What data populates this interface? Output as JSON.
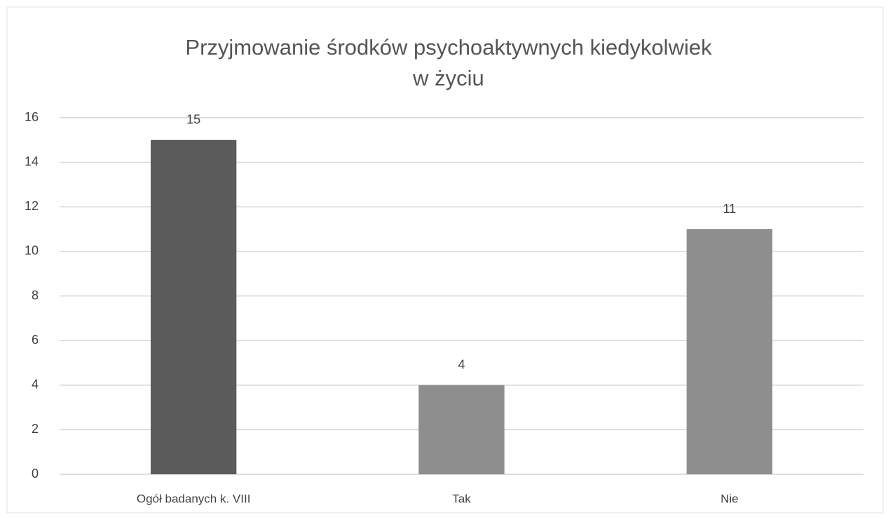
{
  "chart_data": {
    "type": "bar",
    "title": [
      "Przyjmowanie środków psychoaktywnych kiedykolwiek",
      "w życiu"
    ],
    "categories": [
      "Ogół badanych k. VIII",
      "Tak",
      "Nie"
    ],
    "values": [
      15,
      4,
      11
    ],
    "colors": [
      "#5b5b5b",
      "#8e8e8e",
      "#8e8e8e"
    ],
    "ylim": [
      0,
      16
    ],
    "yticks": [
      0,
      2,
      4,
      6,
      8,
      10,
      12,
      14,
      16
    ],
    "grid": true
  }
}
